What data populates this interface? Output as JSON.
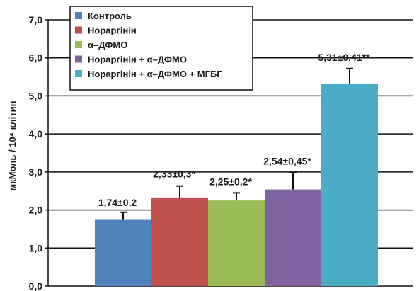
{
  "chart_data": {
    "type": "bar",
    "ylabel": "мкМоль / 10⁴ клітин",
    "ylim": [
      0,
      7
    ],
    "y_ticks": [
      "0,0",
      "1,0",
      "2,0",
      "3,0",
      "4,0",
      "5,0",
      "6,0",
      "7,0"
    ],
    "grid": true,
    "legend_position": "top-left",
    "series": [
      {
        "name": "Контроль",
        "value": 1.74,
        "error": 0.2,
        "label": "1,74±0,2",
        "color": "#4f81bd"
      },
      {
        "name": "Нораргінін",
        "value": 2.33,
        "error": 0.3,
        "label": "2,33±0,3*",
        "color": "#c0504d"
      },
      {
        "name": "α–ДФМО",
        "value": 2.25,
        "error": 0.2,
        "label": "2,25±0,2*",
        "color": "#9bbb59"
      },
      {
        "name": "Нораргінін + α–ДФМО",
        "value": 2.54,
        "error": 0.45,
        "label": "2,54±0,45*",
        "color": "#8064a2"
      },
      {
        "name": "Нораргінін + α–ДФМО + МГБГ",
        "value": 5.31,
        "error": 0.41,
        "label": "5,31±0,41**",
        "color": "#4bacc6"
      }
    ]
  }
}
